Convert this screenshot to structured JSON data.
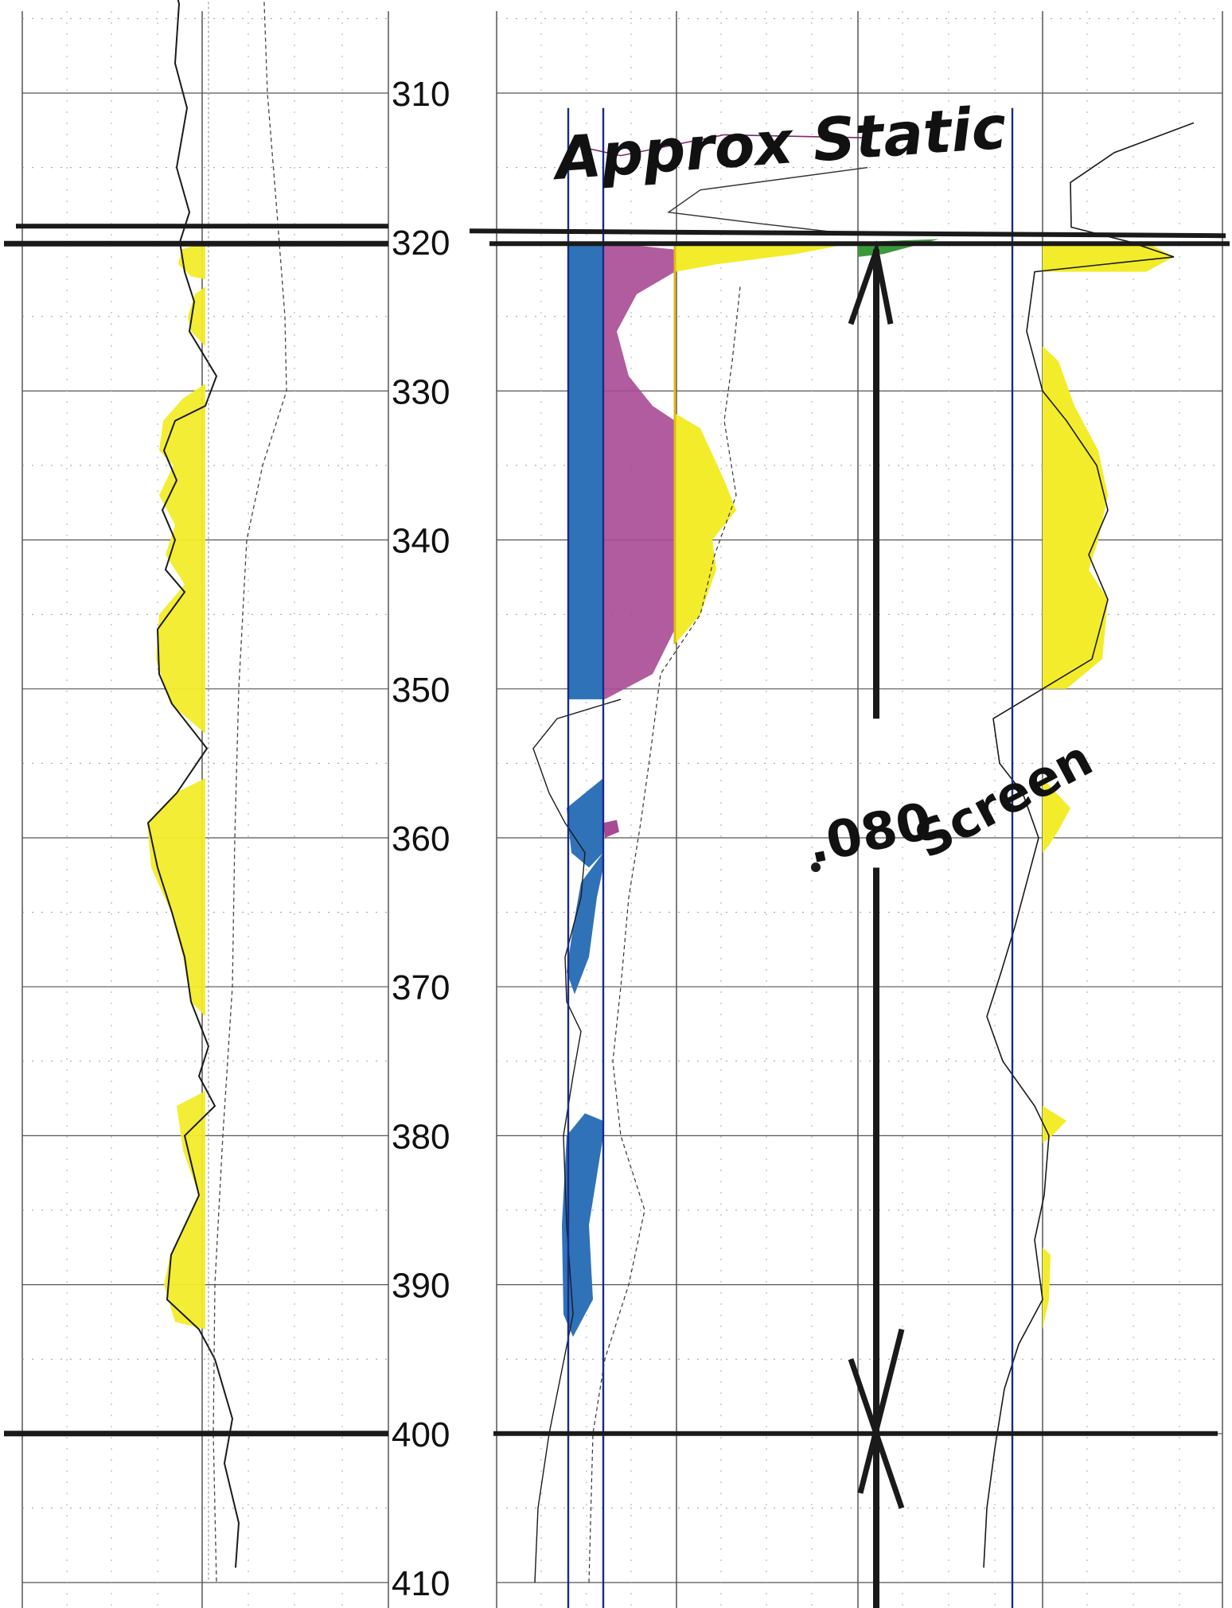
{
  "log": {
    "depth_ticks": [
      "310",
      "320",
      "330",
      "340",
      "350",
      "360",
      "370",
      "380",
      "390",
      "400",
      "410"
    ],
    "annotations": {
      "static_label": "Approx Static",
      "screen_size": ".080",
      "screen_label": "Screen"
    },
    "colors": {
      "sand_fill": "#f2ec2a",
      "blue_fill": "#2f72b8",
      "magenta_fill": "#a84a93",
      "green_fill": "#3a9a3a",
      "ink": "#1a1a1a",
      "grid": "#555555",
      "blue_line": "#1a2a8a"
    },
    "markers": {
      "static_level_depth": 320,
      "screen_top_depth": 320,
      "screen_bottom_depth": 400
    }
  }
}
